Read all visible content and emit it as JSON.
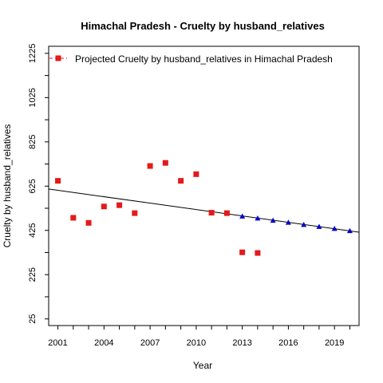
{
  "chart_data": {
    "type": "scatter",
    "title": "Himachal Pradesh  -  Cruelty by husband_relatives",
    "xlabel": "Year",
    "ylabel": "Cruelty by husband_relatives",
    "xlim": [
      2000.4,
      2020.6
    ],
    "ylim": [
      -5,
      1257
    ],
    "x_ticks": [
      2001,
      2004,
      2007,
      2010,
      2013,
      2016,
      2019
    ],
    "y_ticks": [
      25,
      225,
      425,
      625,
      825,
      1025,
      1225
    ],
    "grid": false,
    "legend": {
      "position": "top-left",
      "entries": [
        "Projected  Cruelty by husband_relatives  in  Himachal Pradesh"
      ]
    },
    "series": [
      {
        "marker": "square",
        "color": "#e31a1c",
        "points": [
          [
            2001,
            649
          ],
          [
            2002,
            482
          ],
          [
            2003,
            459
          ],
          [
            2004,
            533
          ],
          [
            2005,
            539
          ],
          [
            2006,
            503
          ],
          [
            2007,
            716
          ],
          [
            2008,
            730
          ],
          [
            2009,
            649
          ],
          [
            2010,
            679
          ],
          [
            2011,
            505
          ],
          [
            2012,
            503
          ],
          [
            2013,
            326
          ],
          [
            2014,
            323
          ]
        ]
      },
      {
        "marker": "triangle",
        "color": "#0000cc",
        "points": [
          [
            2013,
            488
          ],
          [
            2014,
            479
          ],
          [
            2015,
            469
          ],
          [
            2016,
            460
          ],
          [
            2017,
            450
          ],
          [
            2018,
            441
          ],
          [
            2019,
            432
          ],
          [
            2020,
            422
          ]
        ]
      }
    ],
    "trend_line": {
      "color": "#000000",
      "from": [
        2000.4,
        612
      ],
      "to": [
        2020.6,
        417
      ]
    }
  }
}
